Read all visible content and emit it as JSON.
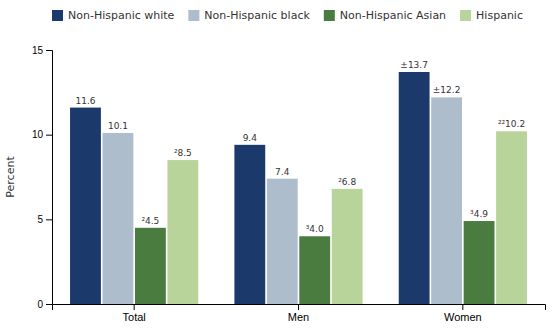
{
  "chart_data": {
    "type": "bar",
    "ylabel": "Percent",
    "categories": [
      "Total",
      "Men",
      "Women"
    ],
    "series": [
      {
        "name": "Non-Hispanic white",
        "color": "#1b3a6b",
        "values": [
          11.6,
          9.4,
          13.7
        ],
        "value_labels": [
          "11.6",
          "9.4",
          "±13.7"
        ]
      },
      {
        "name": "Non-Hispanic black",
        "color": "#adbdcc",
        "values": [
          10.1,
          7.4,
          12.2
        ],
        "value_labels": [
          "10.1",
          "7.4",
          "±12.2"
        ]
      },
      {
        "name": "Non-Hispanic Asian",
        "color": "#4a7c3f",
        "values": [
          4.5,
          4.0,
          4.9
        ],
        "value_labels": [
          "²4.5",
          "³4.0",
          "³4.9"
        ]
      },
      {
        "name": "Hispanic",
        "color": "#b8d49a",
        "values": [
          8.5,
          6.8,
          10.2
        ],
        "value_labels": [
          "²8.5",
          "²6.8",
          "²²10.2"
        ]
      }
    ],
    "ylim": [
      0,
      15
    ],
    "yticks": [
      0,
      5,
      10,
      15
    ],
    "grid": false,
    "legend": "top-left",
    "data_labels": true
  }
}
